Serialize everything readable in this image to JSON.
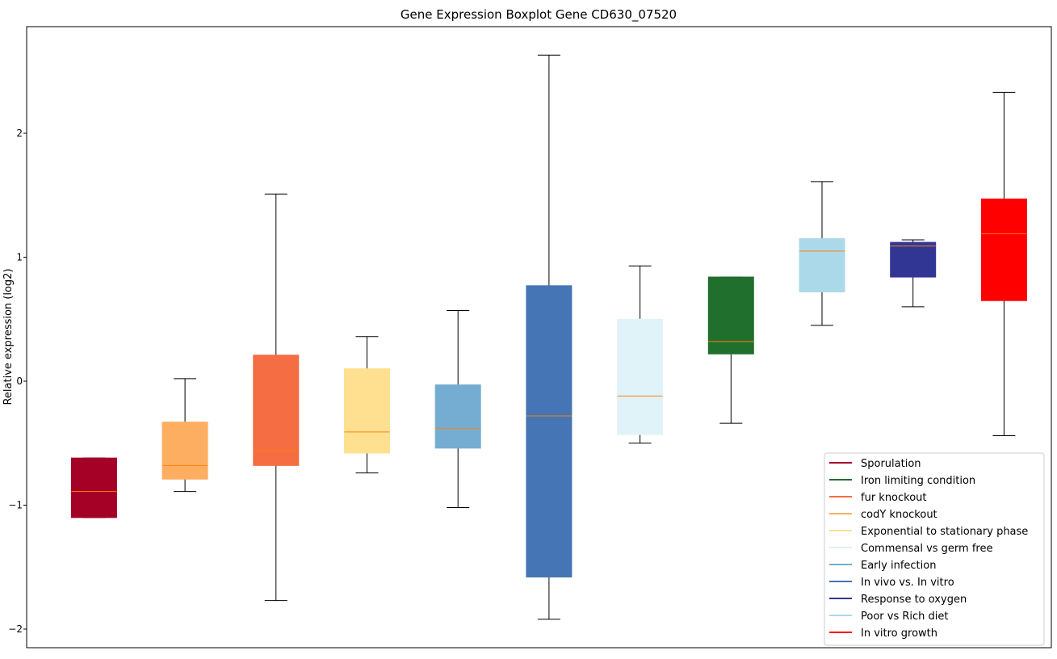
{
  "chart_data": {
    "type": "box",
    "title": "Gene Expression Boxplot Gene CD630_07520",
    "xlabel": "",
    "ylabel": "Relative expression (log2)",
    "ylim": [
      -2.15,
      2.86
    ],
    "xlim": [
      0.26,
      11.52
    ],
    "yticks": [
      -2,
      -1,
      0,
      1,
      2
    ],
    "ytick_labels": [
      "−2",
      "−1",
      "0",
      "1",
      "2"
    ],
    "grid": false,
    "legend_position": "lower-right",
    "median_color": "#ff7f0e",
    "boxes": [
      {
        "name": "Sporulation",
        "color": "#a50026",
        "whislo": -1.1,
        "q1": -1.1,
        "med": -0.89,
        "q3": -0.62,
        "whishi": -0.62
      },
      {
        "name": "codY knockout",
        "color": "#fdae61",
        "whislo": -0.89,
        "q1": -0.79,
        "med": -0.68,
        "q3": -0.33,
        "whishi": 0.02
      },
      {
        "name": "fur knockout",
        "color": "#f46d43",
        "whislo": -1.77,
        "q1": -0.68,
        "med": -0.56,
        "q3": 0.21,
        "whishi": 1.51
      },
      {
        "name": "Exponential to stationary phase",
        "color": "#fee090",
        "whislo": -0.74,
        "q1": -0.58,
        "med": -0.41,
        "q3": 0.1,
        "whishi": 0.36
      },
      {
        "name": "Early infection",
        "color": "#74add1",
        "whislo": -1.02,
        "q1": -0.54,
        "med": -0.38,
        "q3": -0.03,
        "whishi": 0.57
      },
      {
        "name": "In vivo vs. In vitro",
        "color": "#4575b4",
        "whislo": -1.92,
        "q1": -1.58,
        "med": -0.28,
        "q3": 0.77,
        "whishi": 2.63
      },
      {
        "name": "Commensal vs germ free",
        "color": "#e0f3f8",
        "whislo": -0.5,
        "q1": -0.43,
        "med": -0.12,
        "q3": 0.5,
        "whishi": 0.93
      },
      {
        "name": "Iron limiting condition",
        "color": "#216f2c",
        "whislo": -0.34,
        "q1": 0.22,
        "med": 0.32,
        "q3": 0.84,
        "whishi": 0.84
      },
      {
        "name": "Poor vs Rich diet",
        "color": "#abd9e9",
        "whislo": 0.45,
        "q1": 0.72,
        "med": 1.05,
        "q3": 1.15,
        "whishi": 1.61
      },
      {
        "name": "Response to oxygen",
        "color": "#313695",
        "whislo": 0.6,
        "q1": 0.84,
        "med": 1.09,
        "q3": 1.12,
        "whishi": 1.14
      },
      {
        "name": "In vitro growth",
        "color": "#ff0000",
        "whislo": -0.44,
        "q1": 0.65,
        "med": 1.19,
        "q3": 1.47,
        "whishi": 2.33
      }
    ],
    "legend": [
      {
        "label": "Sporulation",
        "color": "#a50026"
      },
      {
        "label": "Iron limiting condition",
        "color": "#216f2c"
      },
      {
        "label": "fur knockout",
        "color": "#f46d43"
      },
      {
        "label": "codY knockout",
        "color": "#fdae61"
      },
      {
        "label": "Exponential to stationary phase",
        "color": "#fee090"
      },
      {
        "label": "Commensal vs germ free",
        "color": "#e0f3f8"
      },
      {
        "label": "Early infection",
        "color": "#74add1"
      },
      {
        "label": "In vivo vs. In vitro",
        "color": "#4575b4"
      },
      {
        "label": "Response to oxygen",
        "color": "#313695"
      },
      {
        "label": "Poor vs Rich diet",
        "color": "#abd9e9"
      },
      {
        "label": "In vitro growth",
        "color": "#ff0000"
      }
    ]
  }
}
